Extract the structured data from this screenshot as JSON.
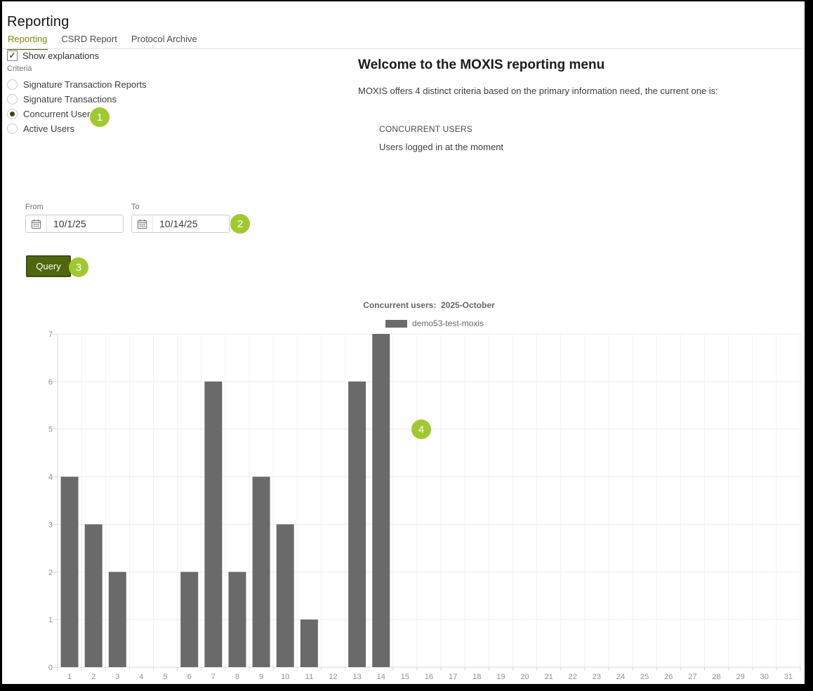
{
  "header": {
    "title": "Reporting"
  },
  "tabs": [
    {
      "label": "Reporting",
      "active": true
    },
    {
      "label": "CSRD Report",
      "active": false
    },
    {
      "label": "Protocol Archive",
      "active": false
    }
  ],
  "controls": {
    "show_explanations_label": "Show explanations",
    "show_explanations_checked": true,
    "criteria_label": "Criteria",
    "criteria_options": [
      {
        "label": "Signature Transaction Reports",
        "selected": false
      },
      {
        "label": "Signature Transactions",
        "selected": false
      },
      {
        "label": "Concurrent Users",
        "selected": true
      },
      {
        "label": "Active Users",
        "selected": false
      }
    ],
    "from_label": "From",
    "from_value": "10/1/25",
    "to_label": "To",
    "to_value": "10/14/25",
    "query_label": "Query"
  },
  "welcome": {
    "heading": "Welcome to the MOXIS reporting menu",
    "description": "MOXIS offers 4 distinct criteria based on the primary information need, the current one is:",
    "current_criteria_title": "CONCURRENT USERS",
    "current_criteria_description": "Users logged in at the moment"
  },
  "annotations": [
    {
      "number": "1"
    },
    {
      "number": "2"
    },
    {
      "number": "3"
    },
    {
      "number": "4"
    }
  ],
  "icons": {
    "checkbox_check": "✓"
  },
  "colors": {
    "accent_olive": "#4e5a07",
    "active_tab": "#7d8a08",
    "query_button": "#50660c",
    "badge_green": "#a0c930",
    "bar_gray": "#6a6a6a"
  },
  "chart_data": {
    "type": "bar",
    "title": "Concurrent users:  2025-October",
    "legend": [
      "demo53-test-moxis"
    ],
    "legend_position": "top",
    "categories": [
      1,
      2,
      3,
      4,
      5,
      6,
      7,
      8,
      9,
      10,
      11,
      12,
      13,
      14,
      15,
      16,
      17,
      18,
      19,
      20,
      21,
      22,
      23,
      24,
      25,
      26,
      27,
      28,
      29,
      30,
      31
    ],
    "values": [
      4,
      3,
      2,
      0,
      0,
      2,
      6,
      2,
      4,
      3,
      1,
      0,
      6,
      7,
      0,
      0,
      0,
      0,
      0,
      0,
      0,
      0,
      0,
      0,
      0,
      0,
      0,
      0,
      0,
      0,
      0
    ],
    "xlabel": "",
    "ylabel": "",
    "ylim": [
      0,
      7
    ],
    "yticks": [
      0,
      1,
      2,
      3,
      4,
      5,
      6,
      7
    ],
    "grid": true,
    "bar_color": "#6a6a6a"
  }
}
